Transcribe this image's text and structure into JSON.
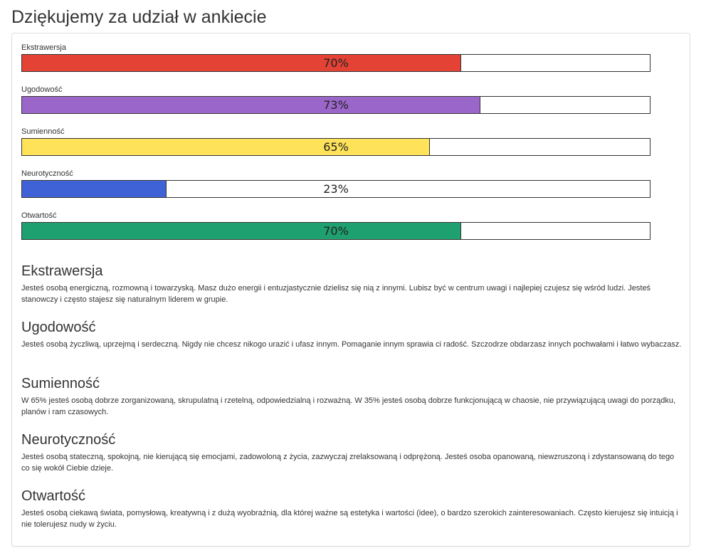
{
  "page": {
    "title": "Dziękujemy za udział w ankiecie"
  },
  "results": [
    {
      "label": "Ekstrawersja",
      "percent": 70,
      "percent_text": "70%",
      "color": "#e34234"
    },
    {
      "label": "Ugodowość",
      "percent": 73,
      "percent_text": "73%",
      "color": "#9b66c9"
    },
    {
      "label": "Sumienność",
      "percent": 65,
      "percent_text": "65%",
      "color": "#fde25a"
    },
    {
      "label": "Neurotyczność",
      "percent": 23,
      "percent_text": "23%",
      "color": "#3f63d6"
    },
    {
      "label": "Otwartość",
      "percent": 70,
      "percent_text": "70%",
      "color": "#1fa070"
    }
  ],
  "descriptions": [
    {
      "title": "Ekstrawersja",
      "text": "Jesteś osobą energiczną, rozmowną i towarzyską. Masz dużo energii i entuzjastycznie dzielisz się nią z innymi. Lubisz być w centrum uwagi i najlepiej czujesz się wśród ludzi. Jesteś stanowczy i często stajesz się naturalnym liderem w grupie."
    },
    {
      "title": "Ugodowość",
      "text": "Jesteś osobą życzliwą, uprzejmą i serdeczną. Nigdy nie chcesz nikogo urazić i ufasz innym. Pomaganie innym sprawia ci radość. Szczodrze obdarzasz innych pochwałami i łatwo wybaczasz."
    },
    {
      "title": "Sumienność",
      "text": "W 65% jesteś osobą dobrze zorganizowaną, skrupulatną i rzetelną, odpowiedzialną i rozważną. W 35% jesteś osobą dobrze funkcjonującą w chaosie, nie przywiązującą uwagi do porządku, planów i ram czasowych."
    },
    {
      "title": "Neurotyczność",
      "text": "Jesteś osobą stateczną, spokojną, nie kierującą się emocjami, zadowoloną z życia, zazwyczaj zrelaksowaną i odprężoną. Jesteś osoba opanowaną, niewzruszoną i zdystansowaną do tego co się wokół Ciebie dzieje."
    },
    {
      "title": "Otwartość",
      "text": "Jesteś osobą ciekawą świata, pomysłową, kreatywną i z dużą wyobraźnią, dla której ważne są estetyka i wartości (idee), o bardzo szerokich zainteresowaniach. Często kierujesz się intuicją i nie tolerujesz nudy w życiu."
    }
  ]
}
